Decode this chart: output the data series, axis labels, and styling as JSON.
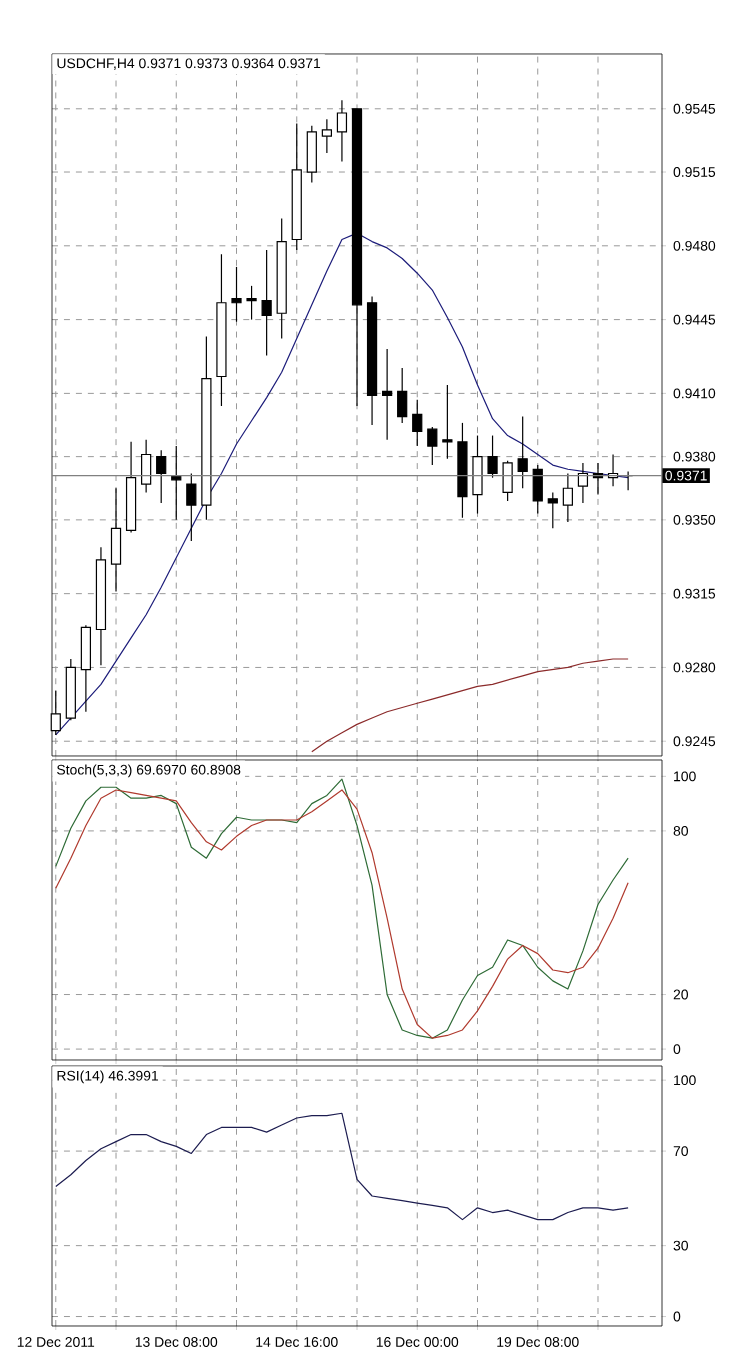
{
  "chart_data": [
    {
      "type": "candlestick",
      "title": "USDCHF,H4  0.9371 0.9373 0.9364 0.9371",
      "categories": [
        null,
        null,
        null,
        null,
        null,
        null,
        null,
        null,
        null,
        null,
        null,
        null,
        null,
        null,
        null,
        null,
        null,
        null,
        null,
        null,
        null,
        null,
        null,
        null,
        null,
        null,
        null,
        null,
        null,
        null,
        null,
        null,
        null,
        null,
        null,
        null,
        null,
        null,
        null
      ],
      "ohlc": [
        [
          0.925,
          0.9269,
          0.9248,
          0.9258
        ],
        [
          0.9256,
          0.9284,
          0.9255,
          0.928
        ],
        [
          0.9279,
          0.93,
          0.9259,
          0.9299
        ],
        [
          0.9298,
          0.9337,
          0.9281,
          0.9331
        ],
        [
          0.9329,
          0.9365,
          0.9316,
          0.9346
        ],
        [
          0.9345,
          0.9387,
          0.9344,
          0.937
        ],
        [
          0.9367,
          0.9388,
          0.9363,
          0.9381
        ],
        [
          0.938,
          0.9383,
          0.9358,
          0.9372
        ],
        [
          0.9371,
          0.9385,
          0.935,
          0.9369
        ],
        [
          0.9367,
          0.9372,
          0.934,
          0.9357
        ],
        [
          0.9357,
          0.9437,
          0.935,
          0.9417
        ],
        [
          0.9418,
          0.9476,
          0.9404,
          0.9453
        ],
        [
          0.9455,
          0.947,
          0.9444,
          0.9453
        ],
        [
          0.9455,
          0.9461,
          0.9445,
          0.9454
        ],
        [
          0.9454,
          0.9478,
          0.9428,
          0.9447
        ],
        [
          0.9448,
          0.9493,
          0.9436,
          0.9482
        ],
        [
          0.9483,
          0.9538,
          0.9478,
          0.9516
        ],
        [
          0.9515,
          0.9537,
          0.951,
          0.9534
        ],
        [
          0.9532,
          0.954,
          0.9524,
          0.9535
        ],
        [
          0.9534,
          0.9549,
          0.952,
          0.9543
        ],
        [
          0.9545,
          0.9545,
          0.9404,
          0.9452
        ],
        [
          0.9453,
          0.9456,
          0.9395,
          0.9409
        ],
        [
          0.9411,
          0.9431,
          0.9388,
          0.9409
        ],
        [
          0.9411,
          0.9422,
          0.9396,
          0.9399
        ],
        [
          0.94,
          0.9407,
          0.9385,
          0.9392
        ],
        [
          0.9393,
          0.9394,
          0.9376,
          0.9385
        ],
        [
          0.9388,
          0.9414,
          0.9379,
          0.9387
        ],
        [
          0.9387,
          0.9396,
          0.9351,
          0.9361
        ],
        [
          0.9362,
          0.939,
          0.9353,
          0.938
        ],
        [
          0.938,
          0.939,
          0.937,
          0.9372
        ],
        [
          0.9363,
          0.9378,
          0.9359,
          0.9377
        ],
        [
          0.9379,
          0.9399,
          0.9365,
          0.9373
        ],
        [
          0.9374,
          0.9376,
          0.9353,
          0.9359
        ],
        [
          0.936,
          0.9363,
          0.9346,
          0.9358
        ],
        [
          0.9357,
          0.9372,
          0.9349,
          0.9365
        ],
        [
          0.9366,
          0.9377,
          0.9358,
          0.9372
        ],
        [
          0.9372,
          0.9377,
          0.9362,
          0.937
        ],
        [
          0.937,
          0.9381,
          0.9366,
          0.9372
        ],
        [
          0.9371,
          0.9373,
          0.9364,
          0.9371
        ]
      ],
      "series": [
        {
          "type": "line",
          "color": "#1c1c7a",
          "values": [
            0.9248,
            0.9256,
            0.9264,
            0.9272,
            0.9283,
            0.9294,
            0.9305,
            0.9318,
            0.9332,
            0.9346,
            0.936,
            0.9372,
            0.9386,
            0.9397,
            0.9408,
            0.942,
            0.9436,
            0.9452,
            0.9468,
            0.9483,
            0.9486,
            0.9482,
            0.9479,
            0.9474,
            0.9467,
            0.9459,
            0.9446,
            0.9432,
            0.9414,
            0.9398,
            0.939,
            0.9386,
            0.9381,
            0.9376,
            0.9374,
            0.9373,
            0.9372,
            0.9371,
            0.937
          ]
        },
        {
          "type": "line",
          "color": "#8b2a2a",
          "values": [
            null,
            null,
            null,
            null,
            null,
            null,
            null,
            null,
            null,
            null,
            null,
            null,
            null,
            null,
            null,
            null,
            null,
            0.924,
            0.9245,
            0.9249,
            0.9253,
            0.9256,
            0.9259,
            0.9261,
            0.9263,
            0.9265,
            0.9267,
            0.9269,
            0.9271,
            0.9272,
            0.9274,
            0.9276,
            0.9278,
            0.9279,
            0.928,
            0.9282,
            0.9283,
            0.9284,
            0.9284
          ]
        }
      ],
      "ylim": [
        0.9238,
        0.9571
      ],
      "yticks": [
        {
          "value": 0.9545,
          "label": "0.9545"
        },
        {
          "value": 0.9515,
          "label": "0.9515"
        },
        {
          "value": 0.948,
          "label": "0.9480"
        },
        {
          "value": 0.9445,
          "label": "0.9445"
        },
        {
          "value": 0.941,
          "label": "0.9410"
        },
        {
          "value": 0.938,
          "label": "0.9380"
        },
        {
          "value": 0.935,
          "label": "0.9350"
        },
        {
          "value": 0.9315,
          "label": "0.9315"
        },
        {
          "value": 0.928,
          "label": "0.9280"
        },
        {
          "value": 0.9245,
          "label": "0.9245"
        }
      ],
      "ref_lines": [
        {
          "axis": "y",
          "value": 0.9371,
          "label": "0.9371",
          "color": "#808080"
        }
      ],
      "grid": true,
      "tick_labels": "y"
    },
    {
      "type": "line",
      "title": "Stoch(5,3,3) 69.6970 60.8908",
      "categories": [
        null,
        null,
        null,
        null,
        null,
        null,
        null,
        null,
        null,
        null,
        null,
        null,
        null,
        null,
        null,
        null,
        null,
        null,
        null,
        null,
        null,
        null,
        null,
        null,
        null,
        null,
        null,
        null,
        null,
        null,
        null,
        null,
        null,
        null,
        null,
        null,
        null,
        null,
        null
      ],
      "series": [
        {
          "color": "#2e6b36",
          "values": [
            67,
            81,
            91,
            96,
            96,
            92,
            92,
            93,
            90,
            74,
            70,
            79,
            85,
            84,
            84,
            84,
            83,
            90,
            93,
            99,
            82,
            60,
            20,
            7,
            5,
            4,
            7,
            18,
            27,
            30,
            40,
            38,
            30,
            25,
            22,
            36,
            53,
            62,
            70
          ]
        },
        {
          "color": "#b03a2e",
          "values": [
            59,
            70,
            82,
            92,
            95,
            94,
            93,
            92,
            91,
            83,
            76,
            73,
            78,
            82,
            84,
            84,
            84,
            87,
            91,
            95,
            88,
            72,
            48,
            22,
            9,
            4,
            5,
            7,
            14,
            23,
            33,
            38,
            35,
            29,
            28,
            30,
            37,
            48,
            61
          ]
        }
      ],
      "ylim": [
        -4,
        106
      ],
      "yticks": [
        100,
        80,
        20,
        0
      ],
      "grid": true,
      "tick_labels": "y"
    },
    {
      "type": "line",
      "title": "RSI(14) 46.3991",
      "categories": [
        "12 Dec 2011",
        null,
        null,
        null,
        null,
        null,
        null,
        null,
        "13 Dec 08:00",
        null,
        null,
        null,
        null,
        null,
        null,
        null,
        "14 Dec 16:00",
        null,
        null,
        null,
        null,
        null,
        null,
        null,
        "16 Dec 00:00",
        null,
        null,
        null,
        null,
        null,
        null,
        null,
        "19 Dec 08:00",
        null,
        null,
        null,
        null,
        null,
        null
      ],
      "series": [
        {
          "color": "#1c1c50",
          "values": [
            55,
            60,
            66,
            71,
            74,
            77,
            77,
            74,
            72,
            69,
            77,
            80,
            80,
            80,
            78,
            81,
            84,
            85,
            85,
            86,
            58,
            51,
            50,
            49,
            48,
            47,
            46,
            41,
            46,
            44,
            45,
            43,
            41,
            41,
            44,
            46,
            46,
            45,
            46
          ]
        }
      ],
      "ylim": [
        -4,
        106
      ],
      "yticks": [
        100,
        70,
        30,
        0
      ],
      "grid": true
    }
  ]
}
